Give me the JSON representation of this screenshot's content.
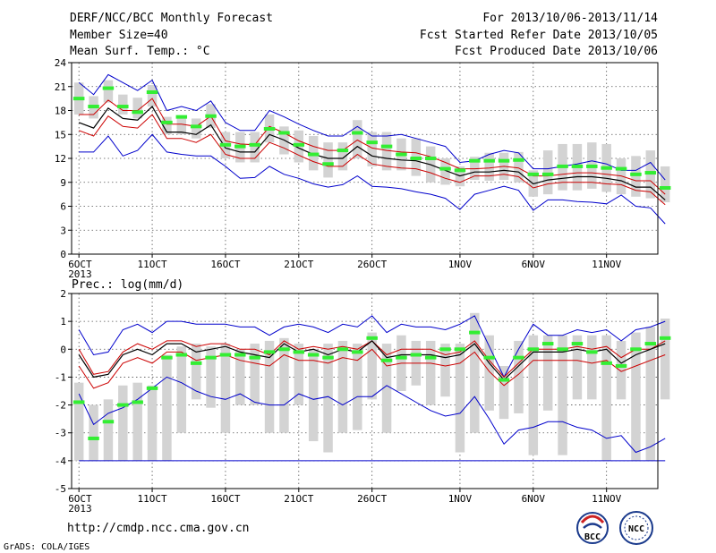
{
  "header": {
    "left": [
      "DERF/NCC/BCC Monthly Forecast",
      "Member Size=40",
      "Mean Surf. Temp.: °C"
    ],
    "right": [
      "For 2013/10/06-2013/11/14",
      "Fcst Started Refer Date 2013/10/05",
      "Fcst Produced Date 2013/10/06"
    ]
  },
  "footer": {
    "url": "http://cmdp.ncc.cma.gov.cn",
    "credit": "GrADS: COLA/IGES"
  },
  "logos": {
    "left_text": "BCC",
    "right_text": "NCC"
  },
  "colors": {
    "envelope": "#0000cc",
    "spread": "#cc0000",
    "mean": "#000000",
    "box": "#d3d3d3",
    "median": "#33ee33"
  },
  "chart_data": [
    {
      "type": "line",
      "panel": "temperature",
      "title": "",
      "ylabel": "",
      "ylim": [
        0,
        24
      ],
      "yticks": [
        0,
        3,
        6,
        9,
        12,
        15,
        18,
        21,
        24
      ],
      "xlim": [
        0.5,
        40.5
      ],
      "xticks": [
        {
          "x": 1,
          "label": "6OCT",
          "sub": "2013"
        },
        {
          "x": 6,
          "label": "11OCT"
        },
        {
          "x": 11,
          "label": "16OCT"
        },
        {
          "x": 16,
          "label": "21OCT"
        },
        {
          "x": 21,
          "label": "26OCT"
        },
        {
          "x": 27,
          "label": "1NOV"
        },
        {
          "x": 32,
          "label": "6NOV"
        },
        {
          "x": 37,
          "label": "11NOV"
        }
      ],
      "series": [
        {
          "role": "max",
          "values": [
            21.5,
            20.0,
            22.5,
            21.5,
            20.5,
            21.8,
            18.0,
            18.5,
            18.0,
            19.2,
            16.5,
            15.5,
            15.5,
            18.0,
            17.2,
            16.3,
            15.5,
            14.8,
            14.8,
            16.0,
            14.8,
            14.8,
            15.0,
            14.5,
            14.0,
            13.5,
            11.5,
            11.7,
            12.5,
            13.0,
            12.7,
            10.7,
            10.7,
            11.0,
            11.3,
            11.7,
            11.3,
            10.5,
            10.5,
            11.5,
            9.3
          ]
        },
        {
          "role": "min",
          "values": [
            12.8,
            12.8,
            14.8,
            12.3,
            13.0,
            15.0,
            12.8,
            12.5,
            12.3,
            12.3,
            11.0,
            9.5,
            9.6,
            11.0,
            10.0,
            9.5,
            8.8,
            8.4,
            8.7,
            9.8,
            8.5,
            8.4,
            8.2,
            7.8,
            7.5,
            7.0,
            5.6,
            7.5,
            8.0,
            8.5,
            8.0,
            5.5,
            6.8,
            6.8,
            6.6,
            6.5,
            6.3,
            7.4,
            6.0,
            5.8,
            3.8
          ]
        },
        {
          "role": "upper",
          "values": [
            17.5,
            17.5,
            19.3,
            18.0,
            18.0,
            19.5,
            16.3,
            16.3,
            16.0,
            17.3,
            14.2,
            13.8,
            13.7,
            16.0,
            15.2,
            14.2,
            13.5,
            13.0,
            13.0,
            14.3,
            13.3,
            13.0,
            12.8,
            12.7,
            12.2,
            11.5,
            10.7,
            10.7,
            10.8,
            11.0,
            10.8,
            9.8,
            9.8,
            10.0,
            10.2,
            10.2,
            10.0,
            9.8,
            9.2,
            9.2,
            7.5
          ]
        },
        {
          "role": "mean",
          "values": [
            16.5,
            15.8,
            18.3,
            17.0,
            16.8,
            18.5,
            15.3,
            15.3,
            15.0,
            16.2,
            13.3,
            12.8,
            12.8,
            15.0,
            14.3,
            13.3,
            12.5,
            12.0,
            12.0,
            13.5,
            12.3,
            12.0,
            11.8,
            11.7,
            11.2,
            10.5,
            9.8,
            10.3,
            10.3,
            10.5,
            10.3,
            8.8,
            9.3,
            9.5,
            9.7,
            9.7,
            9.5,
            9.2,
            8.4,
            8.4,
            6.8
          ]
        },
        {
          "role": "lower",
          "values": [
            15.5,
            14.8,
            17.3,
            16.0,
            15.8,
            17.5,
            14.5,
            14.5,
            14.0,
            15.0,
            12.5,
            12.0,
            12.0,
            14.0,
            13.3,
            12.4,
            11.6,
            11.0,
            11.0,
            12.5,
            11.3,
            11.0,
            10.8,
            10.7,
            10.2,
            9.5,
            9.0,
            9.8,
            9.8,
            10.0,
            9.7,
            8.3,
            8.8,
            9.0,
            9.0,
            9.0,
            8.8,
            8.7,
            8.0,
            7.8,
            6.2
          ]
        }
      ],
      "boxes": {
        "lo": [
          17.5,
          17.0,
          19.0,
          17.5,
          17.0,
          18.5,
          15.0,
          15.0,
          14.5,
          15.8,
          12.0,
          11.5,
          11.5,
          14.0,
          12.5,
          11.5,
          10.5,
          9.6,
          10.5,
          12.0,
          11.0,
          10.5,
          10.5,
          9.8,
          9.0,
          8.7,
          8.5,
          9.3,
          9.2,
          9.3,
          9.0,
          7.2,
          7.5,
          8.0,
          8.0,
          8.2,
          7.8,
          7.5,
          7.2,
          7.0,
          6.5
        ],
        "hi": [
          21.5,
          19.8,
          21.8,
          20.0,
          19.6,
          21.2,
          17.2,
          17.2,
          17.0,
          18.8,
          15.3,
          15.3,
          15.3,
          17.5,
          16.0,
          15.5,
          14.8,
          14.0,
          14.0,
          16.8,
          15.3,
          15.3,
          14.5,
          14.5,
          13.5,
          12.0,
          11.0,
          12.2,
          12.7,
          12.7,
          12.8,
          10.5,
          13.0,
          13.8,
          13.8,
          14.0,
          13.8,
          12.0,
          12.3,
          13.0,
          11.0
        ]
      },
      "median": [
        19.5,
        18.5,
        20.8,
        18.5,
        17.8,
        20.3,
        16.5,
        17.2,
        16.0,
        17.3,
        13.7,
        13.5,
        13.7,
        15.7,
        15.2,
        13.7,
        12.5,
        11.3,
        13.0,
        15.2,
        14.0,
        13.5,
        12.5,
        12.0,
        12.0,
        10.7,
        10.5,
        11.7,
        11.7,
        11.7,
        11.8,
        10.0,
        10.0,
        11.0,
        11.0,
        11.0,
        10.8,
        10.7,
        10.0,
        10.2,
        8.3
      ]
    },
    {
      "type": "line",
      "panel": "precipitation",
      "title": "Prec.: log(mm/d)",
      "ylabel": "",
      "ylim": [
        -5,
        2
      ],
      "yticks": [
        -5,
        -4,
        -3,
        -2,
        -1,
        0,
        1,
        2
      ],
      "xlim": [
        0.5,
        40.5
      ],
      "xticks": [
        {
          "x": 1,
          "label": "6OCT",
          "sub": "2013"
        },
        {
          "x": 6,
          "label": "11OCT"
        },
        {
          "x": 11,
          "label": "16OCT"
        },
        {
          "x": 16,
          "label": "21OCT"
        },
        {
          "x": 21,
          "label": "26OCT"
        },
        {
          "x": 27,
          "label": "1NOV"
        },
        {
          "x": 32,
          "label": "6NOV"
        },
        {
          "x": 37,
          "label": "11NOV"
        }
      ],
      "floor": -4.0,
      "series": [
        {
          "role": "max",
          "values": [
            0.7,
            -0.2,
            -0.1,
            0.7,
            0.9,
            0.6,
            1.0,
            1.0,
            0.9,
            0.9,
            0.9,
            0.8,
            0.8,
            0.5,
            0.8,
            0.9,
            0.8,
            0.6,
            0.9,
            0.8,
            1.2,
            0.6,
            0.9,
            0.8,
            0.8,
            0.7,
            0.9,
            1.2,
            0.1,
            -1.0,
            0.0,
            0.9,
            0.5,
            0.5,
            0.7,
            0.6,
            0.7,
            0.3,
            0.7,
            0.8,
            1.0
          ]
        },
        {
          "role": "upper",
          "values": [
            0.0,
            -0.9,
            -0.8,
            -0.1,
            0.2,
            0.0,
            0.3,
            0.3,
            0.1,
            0.2,
            0.2,
            0.0,
            0.0,
            -0.2,
            0.3,
            0.0,
            0.1,
            0.0,
            0.1,
            0.0,
            0.3,
            -0.2,
            0.0,
            0.0,
            0.0,
            -0.2,
            -0.1,
            0.3,
            -0.4,
            -1.0,
            -0.5,
            0.0,
            0.0,
            0.0,
            0.1,
            0.0,
            0.1,
            -0.3,
            0.0,
            0.0,
            0.3
          ]
        },
        {
          "role": "mean",
          "values": [
            -0.2,
            -1.0,
            -0.9,
            -0.2,
            0.0,
            -0.2,
            0.2,
            0.2,
            -0.1,
            0.0,
            0.1,
            -0.1,
            -0.2,
            -0.3,
            0.2,
            -0.1,
            0.0,
            -0.2,
            0.0,
            -0.1,
            0.3,
            -0.3,
            -0.2,
            -0.2,
            -0.2,
            -0.3,
            -0.2,
            0.2,
            -0.5,
            -1.1,
            -0.6,
            -0.1,
            -0.1,
            -0.1,
            0.0,
            -0.1,
            0.0,
            -0.5,
            -0.2,
            0.0,
            0.2
          ]
        },
        {
          "role": "lower",
          "values": [
            -0.6,
            -1.4,
            -1.2,
            -0.5,
            -0.3,
            -0.5,
            -0.1,
            -0.1,
            -0.4,
            -0.3,
            -0.2,
            -0.4,
            -0.5,
            -0.6,
            -0.2,
            -0.4,
            -0.4,
            -0.5,
            -0.3,
            -0.4,
            0.0,
            -0.6,
            -0.5,
            -0.5,
            -0.5,
            -0.6,
            -0.5,
            -0.1,
            -0.8,
            -1.3,
            -0.9,
            -0.4,
            -0.4,
            -0.4,
            -0.4,
            -0.5,
            -0.4,
            -0.8,
            -0.6,
            -0.4,
            -0.2
          ]
        },
        {
          "role": "min",
          "values": [
            -1.6,
            -2.7,
            -2.3,
            -2.1,
            -1.8,
            -1.4,
            -1.0,
            -1.2,
            -1.5,
            -1.7,
            -1.8,
            -1.6,
            -1.9,
            -2.0,
            -2.0,
            -1.6,
            -1.8,
            -1.7,
            -2.0,
            -1.7,
            -1.7,
            -1.3,
            -1.6,
            -1.9,
            -2.2,
            -2.4,
            -2.3,
            -1.7,
            -2.5,
            -3.4,
            -2.9,
            -2.8,
            -2.6,
            -2.6,
            -2.8,
            -2.9,
            -3.2,
            -3.1,
            -3.7,
            -3.5,
            -3.2
          ]
        },
        {
          "role": "floor",
          "values": [
            -4.0,
            -4.0,
            -4.0,
            -4.0,
            -4.0,
            -4.0,
            -4.0,
            -4.0,
            -4.0,
            -4.0,
            -4.0,
            -4.0,
            -4.0,
            -4.0,
            -4.0,
            -4.0,
            -4.0,
            -4.0,
            -4.0,
            -4.0,
            -4.0,
            -4.0,
            -4.0,
            -4.0,
            -4.0,
            -4.0,
            -4.0,
            -4.0,
            -4.0,
            -4.0,
            -4.0,
            -4.0,
            -4.0,
            -4.0,
            -4.0,
            -4.0,
            -4.0,
            -4.0,
            -4.0,
            -4.0,
            -4.0
          ]
        }
      ],
      "boxes": {
        "lo": [
          -4.0,
          -4.0,
          -4.0,
          -4.0,
          -4.0,
          -4.0,
          -4.0,
          -3.0,
          -1.8,
          -2.1,
          -3.0,
          -2.0,
          -2.0,
          -3.0,
          -3.0,
          -2.0,
          -3.3,
          -3.7,
          -3.0,
          -2.9,
          -1.8,
          -3.0,
          -1.5,
          -1.3,
          -2.0,
          -1.7,
          -3.7,
          -3.0,
          -2.2,
          -2.5,
          -2.3,
          -3.8,
          -2.2,
          -3.8,
          -1.8,
          -1.8,
          -4.0,
          -1.8,
          -4.0,
          -4.0,
          -1.8
        ],
        "hi": [
          -1.2,
          -2.0,
          -1.8,
          -1.3,
          -1.2,
          -1.3,
          -0.2,
          0.1,
          0.2,
          0.1,
          0.2,
          0.0,
          0.2,
          0.3,
          0.4,
          0.2,
          0.0,
          0.2,
          0.3,
          0.2,
          0.6,
          0.2,
          0.5,
          0.3,
          0.3,
          0.2,
          0.2,
          1.3,
          0.5,
          -0.6,
          0.3,
          0.5,
          0.5,
          0.5,
          0.5,
          0.5,
          0.5,
          0.3,
          0.6,
          0.8,
          1.1
        ]
      },
      "median": [
        -1.9,
        -3.2,
        -2.6,
        -2.0,
        -1.9,
        -1.4,
        -0.3,
        -0.2,
        -0.5,
        -0.3,
        -0.2,
        -0.2,
        -0.3,
        -0.1,
        0.0,
        -0.1,
        -0.2,
        -0.3,
        0.0,
        -0.1,
        0.4,
        -0.4,
        -0.3,
        -0.2,
        -0.3,
        0.0,
        0.0,
        0.6,
        -0.3,
        -1.1,
        -0.3,
        0.0,
        0.2,
        0.0,
        0.2,
        -0.1,
        -0.5,
        -0.6,
        0.0,
        0.2,
        0.4
      ]
    }
  ]
}
